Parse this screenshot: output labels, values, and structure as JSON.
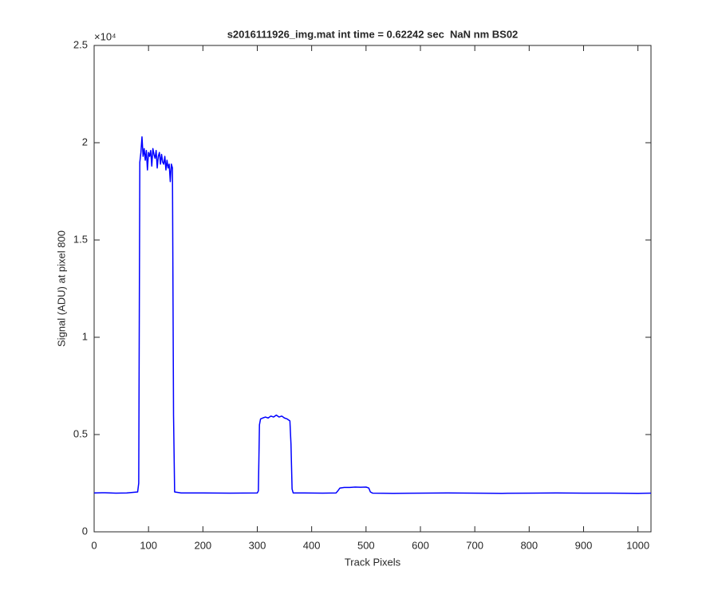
{
  "chart_data": {
    "type": "line",
    "title": "s2016111926_img.mat int time = 0.62242 sec  NaN nm BS02",
    "x_label": "Track Pixels",
    "y_label": "Signal (ADU) at pixel 800",
    "y_multiplier": "×10⁴",
    "x": [
      0,
      20,
      40,
      60,
      80,
      82,
      84,
      86,
      88,
      90,
      92,
      94,
      96,
      98,
      100,
      102,
      104,
      106,
      108,
      110,
      112,
      114,
      116,
      118,
      120,
      122,
      124,
      126,
      128,
      130,
      132,
      134,
      136,
      138,
      140,
      142,
      144,
      146,
      148,
      160,
      200,
      250,
      300,
      302,
      304,
      306,
      310,
      315,
      320,
      325,
      330,
      335,
      340,
      345,
      350,
      355,
      360,
      362,
      364,
      366,
      380,
      420,
      445,
      448,
      452,
      460,
      470,
      480,
      490,
      500,
      505,
      508,
      512,
      550,
      600,
      650,
      700,
      750,
      800,
      850,
      900,
      950,
      1000,
      1024
    ],
    "values": [
      2000,
      2010,
      1990,
      2000,
      2050,
      2500,
      19000,
      19500,
      20300,
      19300,
      19700,
      19100,
      19600,
      18600,
      19500,
      19300,
      19600,
      18800,
      19700,
      19400,
      19200,
      19600,
      18700,
      19300,
      19500,
      18900,
      19400,
      19000,
      18900,
      19300,
      18600,
      19100,
      18700,
      18900,
      18000,
      18900,
      18700,
      6000,
      2050,
      2000,
      2000,
      1990,
      2000,
      2100,
      5500,
      5800,
      5850,
      5900,
      5850,
      5950,
      5900,
      6000,
      5900,
      5950,
      5850,
      5800,
      5700,
      4500,
      2200,
      2000,
      2000,
      1990,
      2000,
      2100,
      2250,
      2280,
      2280,
      2300,
      2290,
      2300,
      2250,
      2050,
      1990,
      1980,
      1990,
      2000,
      1990,
      1980,
      1990,
      2000,
      1990,
      1990,
      1980,
      1990
    ],
    "color": "#0000ff",
    "xlim": [
      0,
      1024
    ],
    "ylim": [
      0,
      25000
    ],
    "xticks": [
      0,
      100,
      200,
      300,
      400,
      500,
      600,
      700,
      800,
      900,
      1000
    ],
    "yticks": [
      0,
      {
        "value": 5000,
        "label": "0.5"
      },
      {
        "value": 10000,
        "label": "1"
      },
      {
        "value": 15000,
        "label": "1.5"
      },
      {
        "value": 20000,
        "label": "2"
      },
      {
        "value": 25000,
        "label": "2.5"
      }
    ]
  }
}
